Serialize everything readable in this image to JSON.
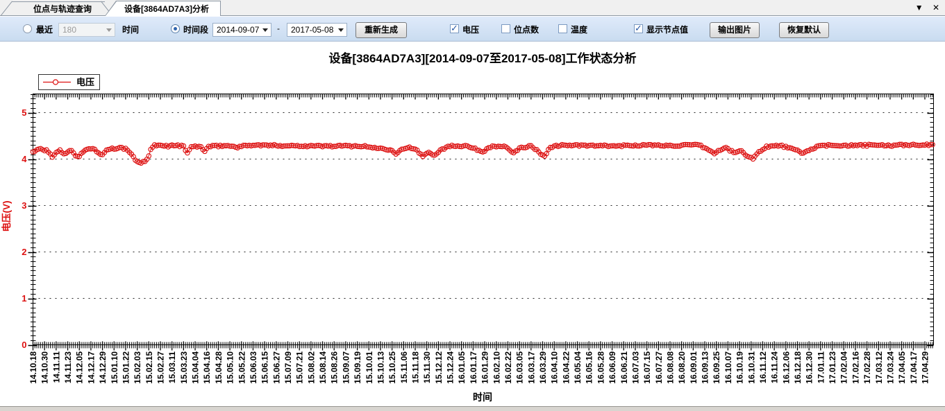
{
  "window": {
    "tab_overflow_icon": "▼",
    "close_icon": "✕"
  },
  "tabs": [
    {
      "label": "位点与轨迹查询",
      "active": false
    },
    {
      "label": "设备[3864AD7A3]分析",
      "active": true
    }
  ],
  "toolbar": {
    "recent_radio_label": "最近",
    "recent_value": "180",
    "recent_unit_label": "时间",
    "range_radio_label": "时间段",
    "date_from": "2014-09-07",
    "range_separator": "-",
    "date_to": "2017-05-08",
    "regenerate_button": "重新生成",
    "checkboxes": [
      {
        "label": "电压",
        "checked": true
      },
      {
        "label": "位点数",
        "checked": false
      },
      {
        "label": "温度",
        "checked": false
      },
      {
        "label": "显示节点值",
        "checked": true
      }
    ],
    "export_button": "输出图片",
    "reset_button": "恢复默认"
  },
  "chart_data": {
    "type": "line",
    "title": "设备[3864AD7A3][2014-09-07至2017-05-08]工作状态分析",
    "xlabel": "时间",
    "ylabel": "电压(V)",
    "ylim": [
      0,
      5.4
    ],
    "yticks": [
      0,
      1,
      2,
      3,
      4,
      5
    ],
    "grid": "horizontal-dotted",
    "legend": [
      {
        "name": "电压",
        "color": "#dd1111",
        "marker": "circle"
      }
    ],
    "x_start_label": "14.10.18",
    "x_tick_interval_days": 12,
    "x_total_days": 933,
    "x_tick_labels": [
      "14.10.18",
      "14.10.30",
      "14.11.11",
      "14.11.23",
      "14.12.05",
      "14.12.17",
      "14.12.29",
      "15.01.10",
      "15.01.22",
      "15.02.03",
      "15.02.15",
      "15.02.27",
      "15.03.11",
      "15.03.23",
      "15.04.04",
      "15.04.16",
      "15.04.28",
      "15.05.10",
      "15.05.22",
      "15.06.03",
      "15.06.15",
      "15.06.27",
      "15.07.09",
      "15.07.21",
      "15.08.02",
      "15.08.14",
      "15.08.26",
      "15.09.07",
      "15.09.19",
      "15.10.01",
      "15.10.13",
      "15.10.25",
      "15.11.06",
      "15.11.18",
      "15.11.30",
      "15.12.12",
      "15.12.24",
      "16.01.05",
      "16.01.17",
      "16.01.29",
      "16.02.10",
      "16.02.22",
      "16.03.05",
      "16.03.17",
      "16.03.29",
      "16.04.10",
      "16.04.22",
      "16.05.04",
      "16.05.16",
      "16.05.28",
      "16.06.09",
      "16.06.21",
      "16.07.03",
      "16.07.15",
      "16.07.27",
      "16.08.08",
      "16.08.20",
      "16.09.01",
      "16.09.13",
      "16.09.25",
      "16.10.07",
      "16.10.19",
      "16.10.31",
      "16.11.12",
      "16.11.24",
      "16.12.06",
      "16.12.18",
      "16.12.30",
      "17.01.11",
      "17.01.23",
      "17.02.04",
      "17.02.16",
      "17.02.28",
      "17.03.12",
      "17.03.24",
      "17.04.05",
      "17.04.17",
      "17.04.29"
    ],
    "series": [
      {
        "name": "电压",
        "color": "#dd1111",
        "point_interval_days": 2,
        "anchors": [
          [
            0,
            4.16
          ],
          [
            8,
            4.22
          ],
          [
            14,
            4.18
          ],
          [
            18,
            4.1
          ],
          [
            20,
            4.05
          ],
          [
            24,
            4.14
          ],
          [
            28,
            4.2
          ],
          [
            32,
            4.1
          ],
          [
            36,
            4.16
          ],
          [
            40,
            4.2
          ],
          [
            44,
            4.08
          ],
          [
            48,
            4.06
          ],
          [
            52,
            4.15
          ],
          [
            56,
            4.22
          ],
          [
            64,
            4.22
          ],
          [
            68,
            4.12
          ],
          [
            72,
            4.1
          ],
          [
            76,
            4.18
          ],
          [
            82,
            4.22
          ],
          [
            90,
            4.24
          ],
          [
            96,
            4.22
          ],
          [
            100,
            4.16
          ],
          [
            103,
            4.06
          ],
          [
            106,
            3.99
          ],
          [
            109,
            3.94
          ],
          [
            113,
            3.92
          ],
          [
            117,
            3.96
          ],
          [
            119,
            4.02
          ],
          [
            121,
            4.14
          ],
          [
            123,
            4.24
          ],
          [
            126,
            4.29
          ],
          [
            132,
            4.29
          ],
          [
            140,
            4.28
          ],
          [
            148,
            4.3
          ],
          [
            156,
            4.27
          ],
          [
            160,
            4.13
          ],
          [
            163,
            4.24
          ],
          [
            168,
            4.28
          ],
          [
            174,
            4.26
          ],
          [
            178,
            4.17
          ],
          [
            182,
            4.27
          ],
          [
            200,
            4.29
          ],
          [
            212,
            4.26
          ],
          [
            224,
            4.3
          ],
          [
            260,
            4.29
          ],
          [
            300,
            4.28
          ],
          [
            340,
            4.28
          ],
          [
            372,
            4.2
          ],
          [
            376,
            4.12
          ],
          [
            380,
            4.18
          ],
          [
            388,
            4.26
          ],
          [
            398,
            4.18
          ],
          [
            404,
            4.06
          ],
          [
            410,
            4.16
          ],
          [
            416,
            4.08
          ],
          [
            422,
            4.2
          ],
          [
            432,
            4.28
          ],
          [
            450,
            4.29
          ],
          [
            466,
            4.15
          ],
          [
            472,
            4.26
          ],
          [
            488,
            4.28
          ],
          [
            498,
            4.12
          ],
          [
            504,
            4.24
          ],
          [
            516,
            4.28
          ],
          [
            530,
            4.06
          ],
          [
            536,
            4.26
          ],
          [
            548,
            4.3
          ],
          [
            570,
            4.29
          ],
          [
            600,
            4.28
          ],
          [
            630,
            4.3
          ],
          [
            660,
            4.29
          ],
          [
            690,
            4.3
          ],
          [
            698,
            4.22
          ],
          [
            706,
            4.12
          ],
          [
            712,
            4.2
          ],
          [
            718,
            4.24
          ],
          [
            726,
            4.14
          ],
          [
            734,
            4.18
          ],
          [
            740,
            4.05
          ],
          [
            746,
            4.02
          ],
          [
            752,
            4.15
          ],
          [
            760,
            4.27
          ],
          [
            775,
            4.29
          ],
          [
            792,
            4.18
          ],
          [
            798,
            4.12
          ],
          [
            804,
            4.2
          ],
          [
            815,
            4.28
          ],
          [
            830,
            4.3
          ],
          [
            850,
            4.29
          ],
          [
            870,
            4.3
          ],
          [
            890,
            4.29
          ],
          [
            910,
            4.31
          ],
          [
            933,
            4.3
          ]
        ]
      }
    ]
  }
}
